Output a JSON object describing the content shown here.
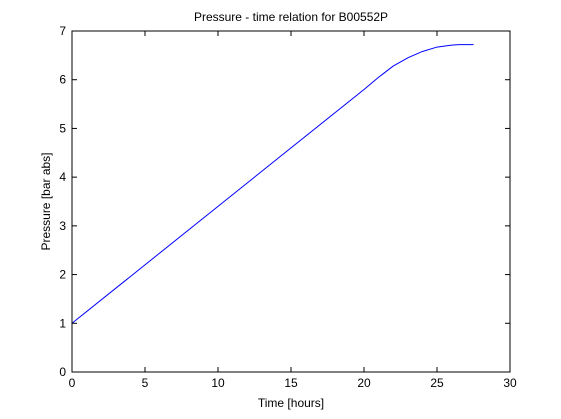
{
  "chart_data": {
    "type": "line",
    "title": "Pressure - time relation for B00552P",
    "xlabel": "Time [hours]",
    "ylabel": "Pressure [bar abs]",
    "xlim": [
      0,
      30
    ],
    "ylim": [
      0,
      7
    ],
    "xticks": [
      0,
      5,
      10,
      15,
      20,
      25,
      30
    ],
    "yticks": [
      0,
      1,
      2,
      3,
      4,
      5,
      6,
      7
    ],
    "grid": false,
    "line_color": "#0000ff",
    "series": [
      {
        "x": [
          0,
          5,
          10,
          15,
          20,
          21,
          22,
          23,
          24,
          25,
          26,
          26.5,
          27,
          27.5
        ],
        "y": [
          1.0,
          2.2,
          3.4,
          4.6,
          5.8,
          6.05,
          6.28,
          6.45,
          6.58,
          6.67,
          6.71,
          6.72,
          6.72,
          6.72
        ]
      }
    ]
  }
}
